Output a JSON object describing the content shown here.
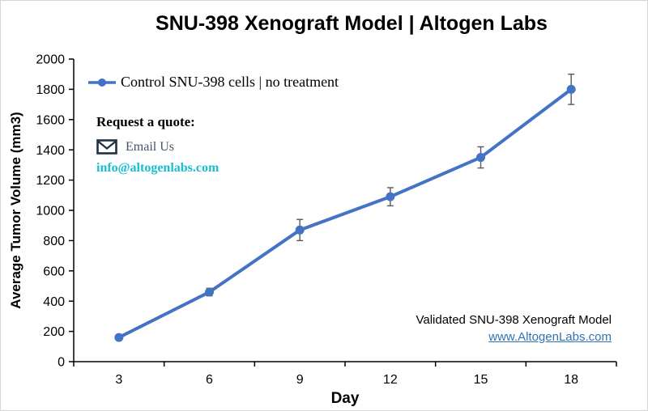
{
  "title": "SNU-398 Xenograft Model | Altogen Labs",
  "legend": {
    "series_label": "Control SNU-398 cells | no treatment"
  },
  "quote": {
    "heading": "Request a quote:",
    "email_link_label": "Email Us",
    "email_address": "info@altogenlabs.com"
  },
  "footer": {
    "note": "Validated SNU-398 Xenograft Model",
    "website_link": "www.AltogenLabs.com"
  },
  "colors": {
    "series": "#4472C4",
    "error_bar": "#595959",
    "axis": "#000000",
    "email_link": "#44546A",
    "email_address": "#18BECD",
    "website_link": "#2E75B6",
    "envelope": "#203142"
  },
  "chart_data": {
    "type": "line",
    "title": "SNU-398 Xenograft Model | Altogen Labs",
    "xlabel": "Day",
    "ylabel": "Average Tumor Volume (mm3)",
    "categories": [
      3,
      6,
      9,
      12,
      15,
      18
    ],
    "series": [
      {
        "name": "Control SNU-398 cells | no treatment",
        "values": [
          160,
          460,
          870,
          1090,
          1350,
          1800
        ],
        "error_bars": [
          15,
          25,
          70,
          60,
          70,
          100
        ],
        "color": "#4472C4"
      }
    ],
    "ylim": [
      0,
      2000
    ],
    "ytick_step": 200,
    "grid": false,
    "legend_position": "top-left",
    "marker": "circle"
  }
}
